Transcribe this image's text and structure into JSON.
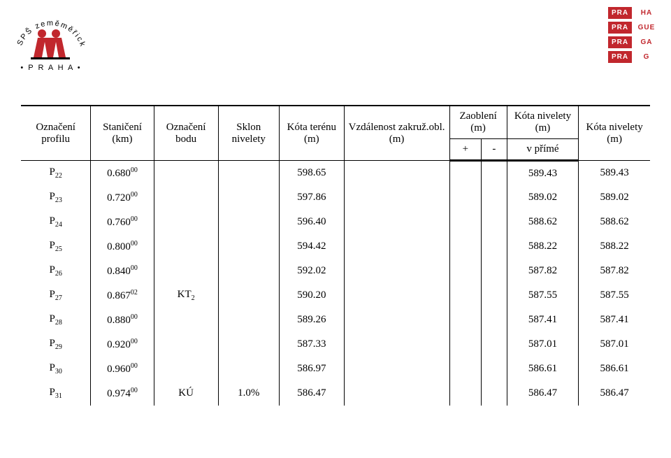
{
  "logo_left": {
    "arc_text": "SPŠ zeměměřická",
    "bottom_text": "• P R A H A •",
    "people_fill": "#c1272d"
  },
  "logo_right": {
    "col1": [
      "PRA",
      "PRA",
      "PRA",
      "PRA"
    ],
    "col2": [
      "HA",
      "GUE",
      "GA",
      "G"
    ],
    "brick_bg": "#c1272d",
    "brick_fg": "#ffffff"
  },
  "table": {
    "columns": [
      {
        "label": "Označení profilu"
      },
      {
        "label": "Staničení (km)"
      },
      {
        "label": "Označení bodu"
      },
      {
        "label": "Sklon nivelety"
      },
      {
        "label": "Kóta terénu (m)"
      },
      {
        "label": "Vzdálenost zakruž.obl. (m)"
      },
      {
        "label_top": "Zaoblení (m)",
        "sub_plus": "+",
        "sub_minus": "-"
      },
      {
        "label_top": "Kóta nivelety (m)",
        "sub": "v přímé"
      },
      {
        "label": "Kóta nivelety (m)"
      }
    ],
    "rows": [
      {
        "profil_sub": "22",
        "stan_main": "0.680",
        "stan_sup": "00",
        "bod": "",
        "sklon": "",
        "teren": "598.65",
        "vzdal": "",
        "plus": "",
        "minus": "",
        "prime": "589.43",
        "nivelety": "589.43"
      },
      {
        "profil_sub": "23",
        "stan_main": "0.720",
        "stan_sup": "00",
        "bod": "",
        "sklon": "",
        "teren": "597.86",
        "vzdal": "",
        "plus": "",
        "minus": "",
        "prime": "589.02",
        "nivelety": "589.02"
      },
      {
        "profil_sub": "24",
        "stan_main": "0.760",
        "stan_sup": "00",
        "bod": "",
        "sklon": "",
        "teren": "596.40",
        "vzdal": "",
        "plus": "",
        "minus": "",
        "prime": "588.62",
        "nivelety": "588.62"
      },
      {
        "profil_sub": "25",
        "stan_main": "0.800",
        "stan_sup": "00",
        "bod": "",
        "sklon": "",
        "teren": "594.42",
        "vzdal": "",
        "plus": "",
        "minus": "",
        "prime": "588.22",
        "nivelety": "588.22"
      },
      {
        "profil_sub": "26",
        "stan_main": "0.840",
        "stan_sup": "00",
        "bod": "",
        "sklon": "",
        "teren": "592.02",
        "vzdal": "",
        "plus": "",
        "minus": "",
        "prime": "587.82",
        "nivelety": "587.82"
      },
      {
        "profil_sub": "27",
        "stan_main": "0.867",
        "stan_sup": "02",
        "bod": "KT",
        "bod_sub": "2",
        "sklon": "",
        "teren": "590.20",
        "vzdal": "",
        "plus": "",
        "minus": "",
        "prime": "587.55",
        "nivelety": "587.55"
      },
      {
        "profil_sub": "28",
        "stan_main": "0.880",
        "stan_sup": "00",
        "bod": "",
        "sklon": "",
        "teren": "589.26",
        "vzdal": "",
        "plus": "",
        "minus": "",
        "prime": "587.41",
        "nivelety": "587.41"
      },
      {
        "profil_sub": "29",
        "stan_main": "0.920",
        "stan_sup": "00",
        "bod": "",
        "sklon": "",
        "teren": "587.33",
        "vzdal": "",
        "plus": "",
        "minus": "",
        "prime": "587.01",
        "nivelety": "587.01"
      },
      {
        "profil_sub": "30",
        "stan_main": "0.960",
        "stan_sup": "00",
        "bod": "",
        "sklon": "",
        "teren": "586.97",
        "vzdal": "",
        "plus": "",
        "minus": "",
        "prime": "586.61",
        "nivelety": "586.61"
      },
      {
        "profil_sub": "31",
        "stan_main": "0.974",
        "stan_sup": "00",
        "bod": "KÚ",
        "sklon": "1.0%",
        "teren": "586.47",
        "vzdal": "",
        "plus": "",
        "minus": "",
        "prime": "586.47",
        "nivelety": "586.47"
      }
    ]
  }
}
